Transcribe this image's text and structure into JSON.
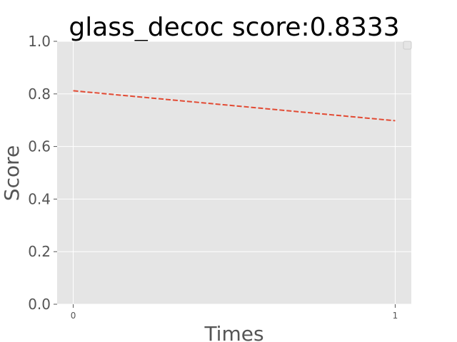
{
  "chart_data": {
    "type": "line",
    "title": "glass_decoc score:0.8333",
    "xlabel": "Times",
    "ylabel": "Score",
    "xlim": [
      -0.05,
      1.05
    ],
    "ylim": [
      0.0,
      1.0
    ],
    "xticks": [
      0,
      1
    ],
    "xtick_labels": [
      "0",
      "1"
    ],
    "yticks": [
      0.0,
      0.2,
      0.4,
      0.6,
      0.8,
      1.0
    ],
    "ytick_labels": [
      "0.0",
      "0.2",
      "0.4",
      "0.6",
      "0.8",
      "1.0"
    ],
    "grid": true,
    "legend": {
      "placement": "top-right",
      "entries": []
    },
    "colors": {
      "plot_background": "#e5e5e5",
      "grid": "#ffffff",
      "line": "#e24a33",
      "legend_background": "#e5e5e5",
      "legend_border": "#cccccc"
    },
    "series": [
      {
        "x": [
          0,
          1
        ],
        "y": [
          0.812,
          0.698
        ],
        "line_style": "dashed"
      }
    ]
  }
}
